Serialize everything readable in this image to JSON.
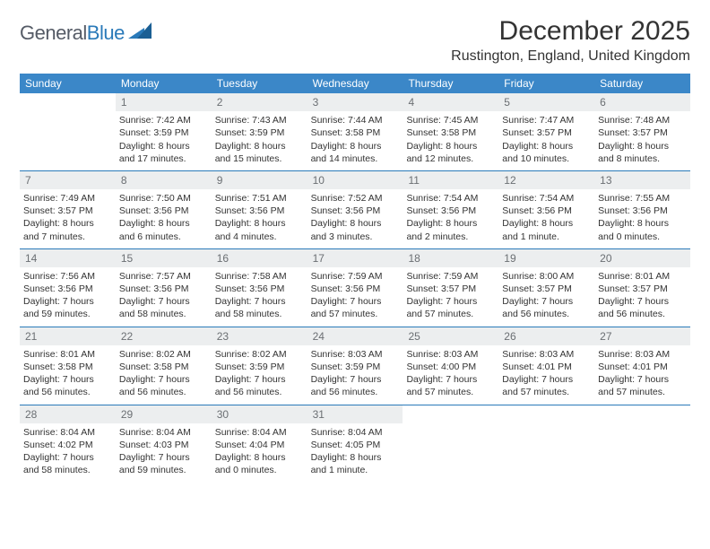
{
  "brand": {
    "name_a": "General",
    "name_b": "Blue"
  },
  "title": "December 2025",
  "location": "Rustington, England, United Kingdom",
  "colors": {
    "header_bg": "#3b87c8",
    "rule": "#2a7ab9",
    "band_bg": "#eceeef",
    "text": "#333333",
    "logo_gray": "#555b66",
    "logo_blue": "#2a7ab9"
  },
  "fonts": {
    "title_pt": 30,
    "location_pt": 16,
    "head_pt": 12,
    "body_pt": 10.5
  },
  "day_headers": [
    "Sunday",
    "Monday",
    "Tuesday",
    "Wednesday",
    "Thursday",
    "Friday",
    "Saturday"
  ],
  "weeks": [
    [
      {
        "n": "",
        "sunrise": "",
        "sunset": "",
        "day": ""
      },
      {
        "n": "1",
        "sunrise": "Sunrise: 7:42 AM",
        "sunset": "Sunset: 3:59 PM",
        "day": "Daylight: 8 hours and 17 minutes."
      },
      {
        "n": "2",
        "sunrise": "Sunrise: 7:43 AM",
        "sunset": "Sunset: 3:59 PM",
        "day": "Daylight: 8 hours and 15 minutes."
      },
      {
        "n": "3",
        "sunrise": "Sunrise: 7:44 AM",
        "sunset": "Sunset: 3:58 PM",
        "day": "Daylight: 8 hours and 14 minutes."
      },
      {
        "n": "4",
        "sunrise": "Sunrise: 7:45 AM",
        "sunset": "Sunset: 3:58 PM",
        "day": "Daylight: 8 hours and 12 minutes."
      },
      {
        "n": "5",
        "sunrise": "Sunrise: 7:47 AM",
        "sunset": "Sunset: 3:57 PM",
        "day": "Daylight: 8 hours and 10 minutes."
      },
      {
        "n": "6",
        "sunrise": "Sunrise: 7:48 AM",
        "sunset": "Sunset: 3:57 PM",
        "day": "Daylight: 8 hours and 8 minutes."
      }
    ],
    [
      {
        "n": "7",
        "sunrise": "Sunrise: 7:49 AM",
        "sunset": "Sunset: 3:57 PM",
        "day": "Daylight: 8 hours and 7 minutes."
      },
      {
        "n": "8",
        "sunrise": "Sunrise: 7:50 AM",
        "sunset": "Sunset: 3:56 PM",
        "day": "Daylight: 8 hours and 6 minutes."
      },
      {
        "n": "9",
        "sunrise": "Sunrise: 7:51 AM",
        "sunset": "Sunset: 3:56 PM",
        "day": "Daylight: 8 hours and 4 minutes."
      },
      {
        "n": "10",
        "sunrise": "Sunrise: 7:52 AM",
        "sunset": "Sunset: 3:56 PM",
        "day": "Daylight: 8 hours and 3 minutes."
      },
      {
        "n": "11",
        "sunrise": "Sunrise: 7:54 AM",
        "sunset": "Sunset: 3:56 PM",
        "day": "Daylight: 8 hours and 2 minutes."
      },
      {
        "n": "12",
        "sunrise": "Sunrise: 7:54 AM",
        "sunset": "Sunset: 3:56 PM",
        "day": "Daylight: 8 hours and 1 minute."
      },
      {
        "n": "13",
        "sunrise": "Sunrise: 7:55 AM",
        "sunset": "Sunset: 3:56 PM",
        "day": "Daylight: 8 hours and 0 minutes."
      }
    ],
    [
      {
        "n": "14",
        "sunrise": "Sunrise: 7:56 AM",
        "sunset": "Sunset: 3:56 PM",
        "day": "Daylight: 7 hours and 59 minutes."
      },
      {
        "n": "15",
        "sunrise": "Sunrise: 7:57 AM",
        "sunset": "Sunset: 3:56 PM",
        "day": "Daylight: 7 hours and 58 minutes."
      },
      {
        "n": "16",
        "sunrise": "Sunrise: 7:58 AM",
        "sunset": "Sunset: 3:56 PM",
        "day": "Daylight: 7 hours and 58 minutes."
      },
      {
        "n": "17",
        "sunrise": "Sunrise: 7:59 AM",
        "sunset": "Sunset: 3:56 PM",
        "day": "Daylight: 7 hours and 57 minutes."
      },
      {
        "n": "18",
        "sunrise": "Sunrise: 7:59 AM",
        "sunset": "Sunset: 3:57 PM",
        "day": "Daylight: 7 hours and 57 minutes."
      },
      {
        "n": "19",
        "sunrise": "Sunrise: 8:00 AM",
        "sunset": "Sunset: 3:57 PM",
        "day": "Daylight: 7 hours and 56 minutes."
      },
      {
        "n": "20",
        "sunrise": "Sunrise: 8:01 AM",
        "sunset": "Sunset: 3:57 PM",
        "day": "Daylight: 7 hours and 56 minutes."
      }
    ],
    [
      {
        "n": "21",
        "sunrise": "Sunrise: 8:01 AM",
        "sunset": "Sunset: 3:58 PM",
        "day": "Daylight: 7 hours and 56 minutes."
      },
      {
        "n": "22",
        "sunrise": "Sunrise: 8:02 AM",
        "sunset": "Sunset: 3:58 PM",
        "day": "Daylight: 7 hours and 56 minutes."
      },
      {
        "n": "23",
        "sunrise": "Sunrise: 8:02 AM",
        "sunset": "Sunset: 3:59 PM",
        "day": "Daylight: 7 hours and 56 minutes."
      },
      {
        "n": "24",
        "sunrise": "Sunrise: 8:03 AM",
        "sunset": "Sunset: 3:59 PM",
        "day": "Daylight: 7 hours and 56 minutes."
      },
      {
        "n": "25",
        "sunrise": "Sunrise: 8:03 AM",
        "sunset": "Sunset: 4:00 PM",
        "day": "Daylight: 7 hours and 57 minutes."
      },
      {
        "n": "26",
        "sunrise": "Sunrise: 8:03 AM",
        "sunset": "Sunset: 4:01 PM",
        "day": "Daylight: 7 hours and 57 minutes."
      },
      {
        "n": "27",
        "sunrise": "Sunrise: 8:03 AM",
        "sunset": "Sunset: 4:01 PM",
        "day": "Daylight: 7 hours and 57 minutes."
      }
    ],
    [
      {
        "n": "28",
        "sunrise": "Sunrise: 8:04 AM",
        "sunset": "Sunset: 4:02 PM",
        "day": "Daylight: 7 hours and 58 minutes."
      },
      {
        "n": "29",
        "sunrise": "Sunrise: 8:04 AM",
        "sunset": "Sunset: 4:03 PM",
        "day": "Daylight: 7 hours and 59 minutes."
      },
      {
        "n": "30",
        "sunrise": "Sunrise: 8:04 AM",
        "sunset": "Sunset: 4:04 PM",
        "day": "Daylight: 8 hours and 0 minutes."
      },
      {
        "n": "31",
        "sunrise": "Sunrise: 8:04 AM",
        "sunset": "Sunset: 4:05 PM",
        "day": "Daylight: 8 hours and 1 minute."
      },
      {
        "n": "",
        "sunrise": "",
        "sunset": "",
        "day": ""
      },
      {
        "n": "",
        "sunrise": "",
        "sunset": "",
        "day": ""
      },
      {
        "n": "",
        "sunrise": "",
        "sunset": "",
        "day": ""
      }
    ]
  ]
}
